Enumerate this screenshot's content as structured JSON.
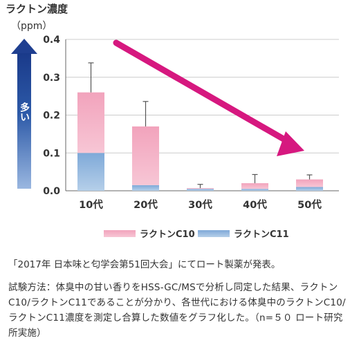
{
  "chart_data": {
    "type": "bar",
    "stacked": true,
    "title": "ラクトン濃度",
    "ylabel": "（ppm）",
    "categories": [
      "10代",
      "20代",
      "30代",
      "40代",
      "50代"
    ],
    "series": [
      {
        "name": "ラクトンC11",
        "values": [
          0.1,
          0.015,
          0.005,
          0.005,
          0.01
        ],
        "color": "#8fb4dc"
      },
      {
        "name": "ラクトンC10",
        "values": [
          0.16,
          0.155,
          0.002,
          0.015,
          0.02
        ],
        "color": "#f0a6bd"
      }
    ],
    "error_tops": [
      0.338,
      0.236,
      0.017,
      0.043,
      0.042
    ],
    "ylim": [
      0,
      0.4
    ],
    "yticks": [
      "0.0",
      "0.1",
      "0.2",
      "0.3",
      "0.4"
    ],
    "side_label": "多い",
    "legend_position": "bottom",
    "trend_arrow_color": "#d6187f",
    "grid": true
  },
  "source_line": "「2017年 日本味と匂学会第51回大会」にてロート製薬が発表。",
  "method_text": "試験方法：体臭中の甘い香りをHSS-GC/MSで分析し同定した結果、ラクトンC10/ラクトンC11であることが分かり、各世代における体臭中のラクトンC10/ラクトンC11濃度を測定し合算した数値をグラフ化した。（n=５０ ロート研究所実施）"
}
